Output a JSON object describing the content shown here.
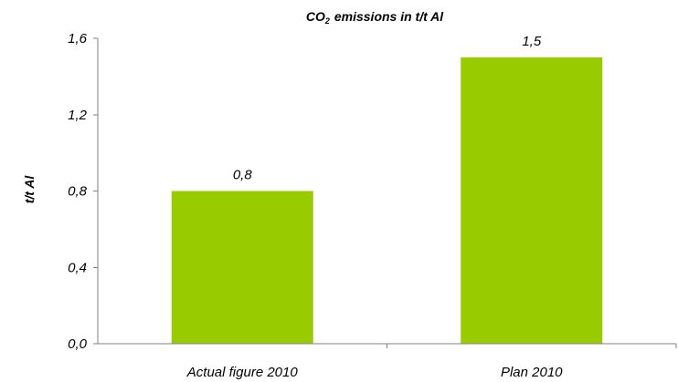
{
  "chart_data": {
    "type": "bar",
    "title": "CO₂ emissions in t/t Al",
    "title_prefix": "CO",
    "title_subscript": "2",
    "title_suffix": "emissions in t/t Al",
    "xlabel": "",
    "ylabel": "t/t Al",
    "categories": [
      "Actual figure 2010",
      "Plan 2010"
    ],
    "values": [
      0.8,
      1.5
    ],
    "value_labels": [
      "0,8",
      "1,5"
    ],
    "ylim": [
      0,
      1.6
    ],
    "yticks": [
      0.0,
      0.4,
      0.8,
      1.2,
      1.6
    ],
    "ytick_labels": [
      "0,0",
      "0,4",
      "0,8",
      "1,2",
      "1,6"
    ],
    "grid": false,
    "legend": "none",
    "bar_color": "#99cc00",
    "axis_color": "#7f7f7f"
  }
}
